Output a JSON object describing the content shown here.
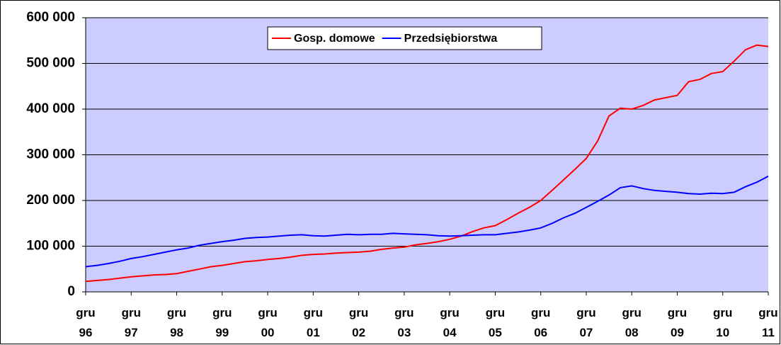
{
  "chart_data": {
    "type": "line",
    "x": [
      "1996-12",
      "1997-03",
      "1997-06",
      "1997-09",
      "1997-12",
      "1998-03",
      "1998-06",
      "1998-09",
      "1998-12",
      "1999-03",
      "1999-06",
      "1999-09",
      "1999-12",
      "2000-03",
      "2000-06",
      "2000-09",
      "2000-12",
      "2001-03",
      "2001-06",
      "2001-09",
      "2001-12",
      "2002-03",
      "2002-06",
      "2002-09",
      "2002-12",
      "2003-03",
      "2003-06",
      "2003-09",
      "2003-12",
      "2004-03",
      "2004-06",
      "2004-09",
      "2004-12",
      "2005-03",
      "2005-06",
      "2005-09",
      "2005-12",
      "2006-03",
      "2006-06",
      "2006-09",
      "2006-12",
      "2007-03",
      "2007-06",
      "2007-09",
      "2007-12",
      "2008-03",
      "2008-06",
      "2008-09",
      "2008-12",
      "2009-03",
      "2009-06",
      "2009-09",
      "2009-12",
      "2010-03",
      "2010-06",
      "2010-09",
      "2010-12",
      "2011-03",
      "2011-06",
      "2011-09",
      "2011-12"
    ],
    "series": [
      {
        "name": "Gosp. domowe",
        "color": "#ff0000",
        "values": [
          23000,
          25000,
          27000,
          30000,
          33000,
          35000,
          37000,
          38000,
          40000,
          45000,
          50000,
          55000,
          58000,
          62000,
          66000,
          68000,
          71000,
          73000,
          76000,
          80000,
          82000,
          83000,
          85000,
          86000,
          87000,
          89000,
          93000,
          96000,
          98000,
          103000,
          106000,
          110000,
          115000,
          122000,
          132000,
          140000,
          145000,
          158000,
          172000,
          185000,
          200000,
          222000,
          245000,
          268000,
          292000,
          330000,
          385000,
          402000,
          400000,
          408000,
          420000,
          425000,
          430000,
          460000,
          465000,
          478000,
          482000,
          505000,
          530000,
          540000,
          537000
        ]
      },
      {
        "name": "Przedsiębiorstwa",
        "color": "#0000ff",
        "values": [
          55000,
          58000,
          62000,
          67000,
          73000,
          77000,
          82000,
          87000,
          92000,
          96000,
          102000,
          106000,
          110000,
          113000,
          117000,
          119000,
          120000,
          122000,
          124000,
          125000,
          123000,
          122000,
          124000,
          126000,
          125000,
          126000,
          126000,
          128000,
          127000,
          126000,
          125000,
          123000,
          122000,
          123000,
          124000,
          125000,
          125000,
          128000,
          131000,
          135000,
          140000,
          150000,
          162000,
          172000,
          185000,
          198000,
          212000,
          228000,
          232000,
          226000,
          222000,
          220000,
          218000,
          215000,
          214000,
          216000,
          215000,
          218000,
          230000,
          240000,
          253000
        ]
      }
    ],
    "ylim": [
      0,
      600000
    ],
    "yticks": [
      0,
      {
        "value": 100000,
        "label": "100 000"
      },
      {
        "value": 200000,
        "label": "200 000"
      },
      {
        "value": 300000,
        "label": "300 000"
      },
      {
        "value": 400000,
        "label": "400 000"
      },
      {
        "value": 500000,
        "label": "500 000"
      },
      {
        "value": 600000,
        "label": "600 000"
      }
    ],
    "xlim": [
      "1996-12",
      "2011-12"
    ],
    "xticks": [
      {
        "value": "1996-12",
        "label": "gru 96"
      },
      {
        "value": "1997-12",
        "label": "gru 97"
      },
      {
        "value": "1998-12",
        "label": "gru 98"
      },
      {
        "value": "1999-12",
        "label": "gru 99"
      },
      {
        "value": "2000-12",
        "label": "gru 00"
      },
      {
        "value": "2001-12",
        "label": "gru 01"
      },
      {
        "value": "2002-12",
        "label": "gru 02"
      },
      {
        "value": "2003-12",
        "label": "gru 03"
      },
      {
        "value": "2004-12",
        "label": "gru 04"
      },
      {
        "value": "2005-12",
        "label": "gru 05"
      },
      {
        "value": "2006-12",
        "label": "gru 06"
      },
      {
        "value": "2007-12",
        "label": "gru 07"
      },
      {
        "value": "2008-12",
        "label": "gru 08"
      },
      {
        "value": "2009-12",
        "label": "gru 09"
      },
      {
        "value": "2010-12",
        "label": "gru 10"
      },
      {
        "value": "2011-12",
        "label": "gru 11"
      }
    ],
    "grid": true,
    "plot_background": "#ccccff",
    "legend": "top"
  }
}
